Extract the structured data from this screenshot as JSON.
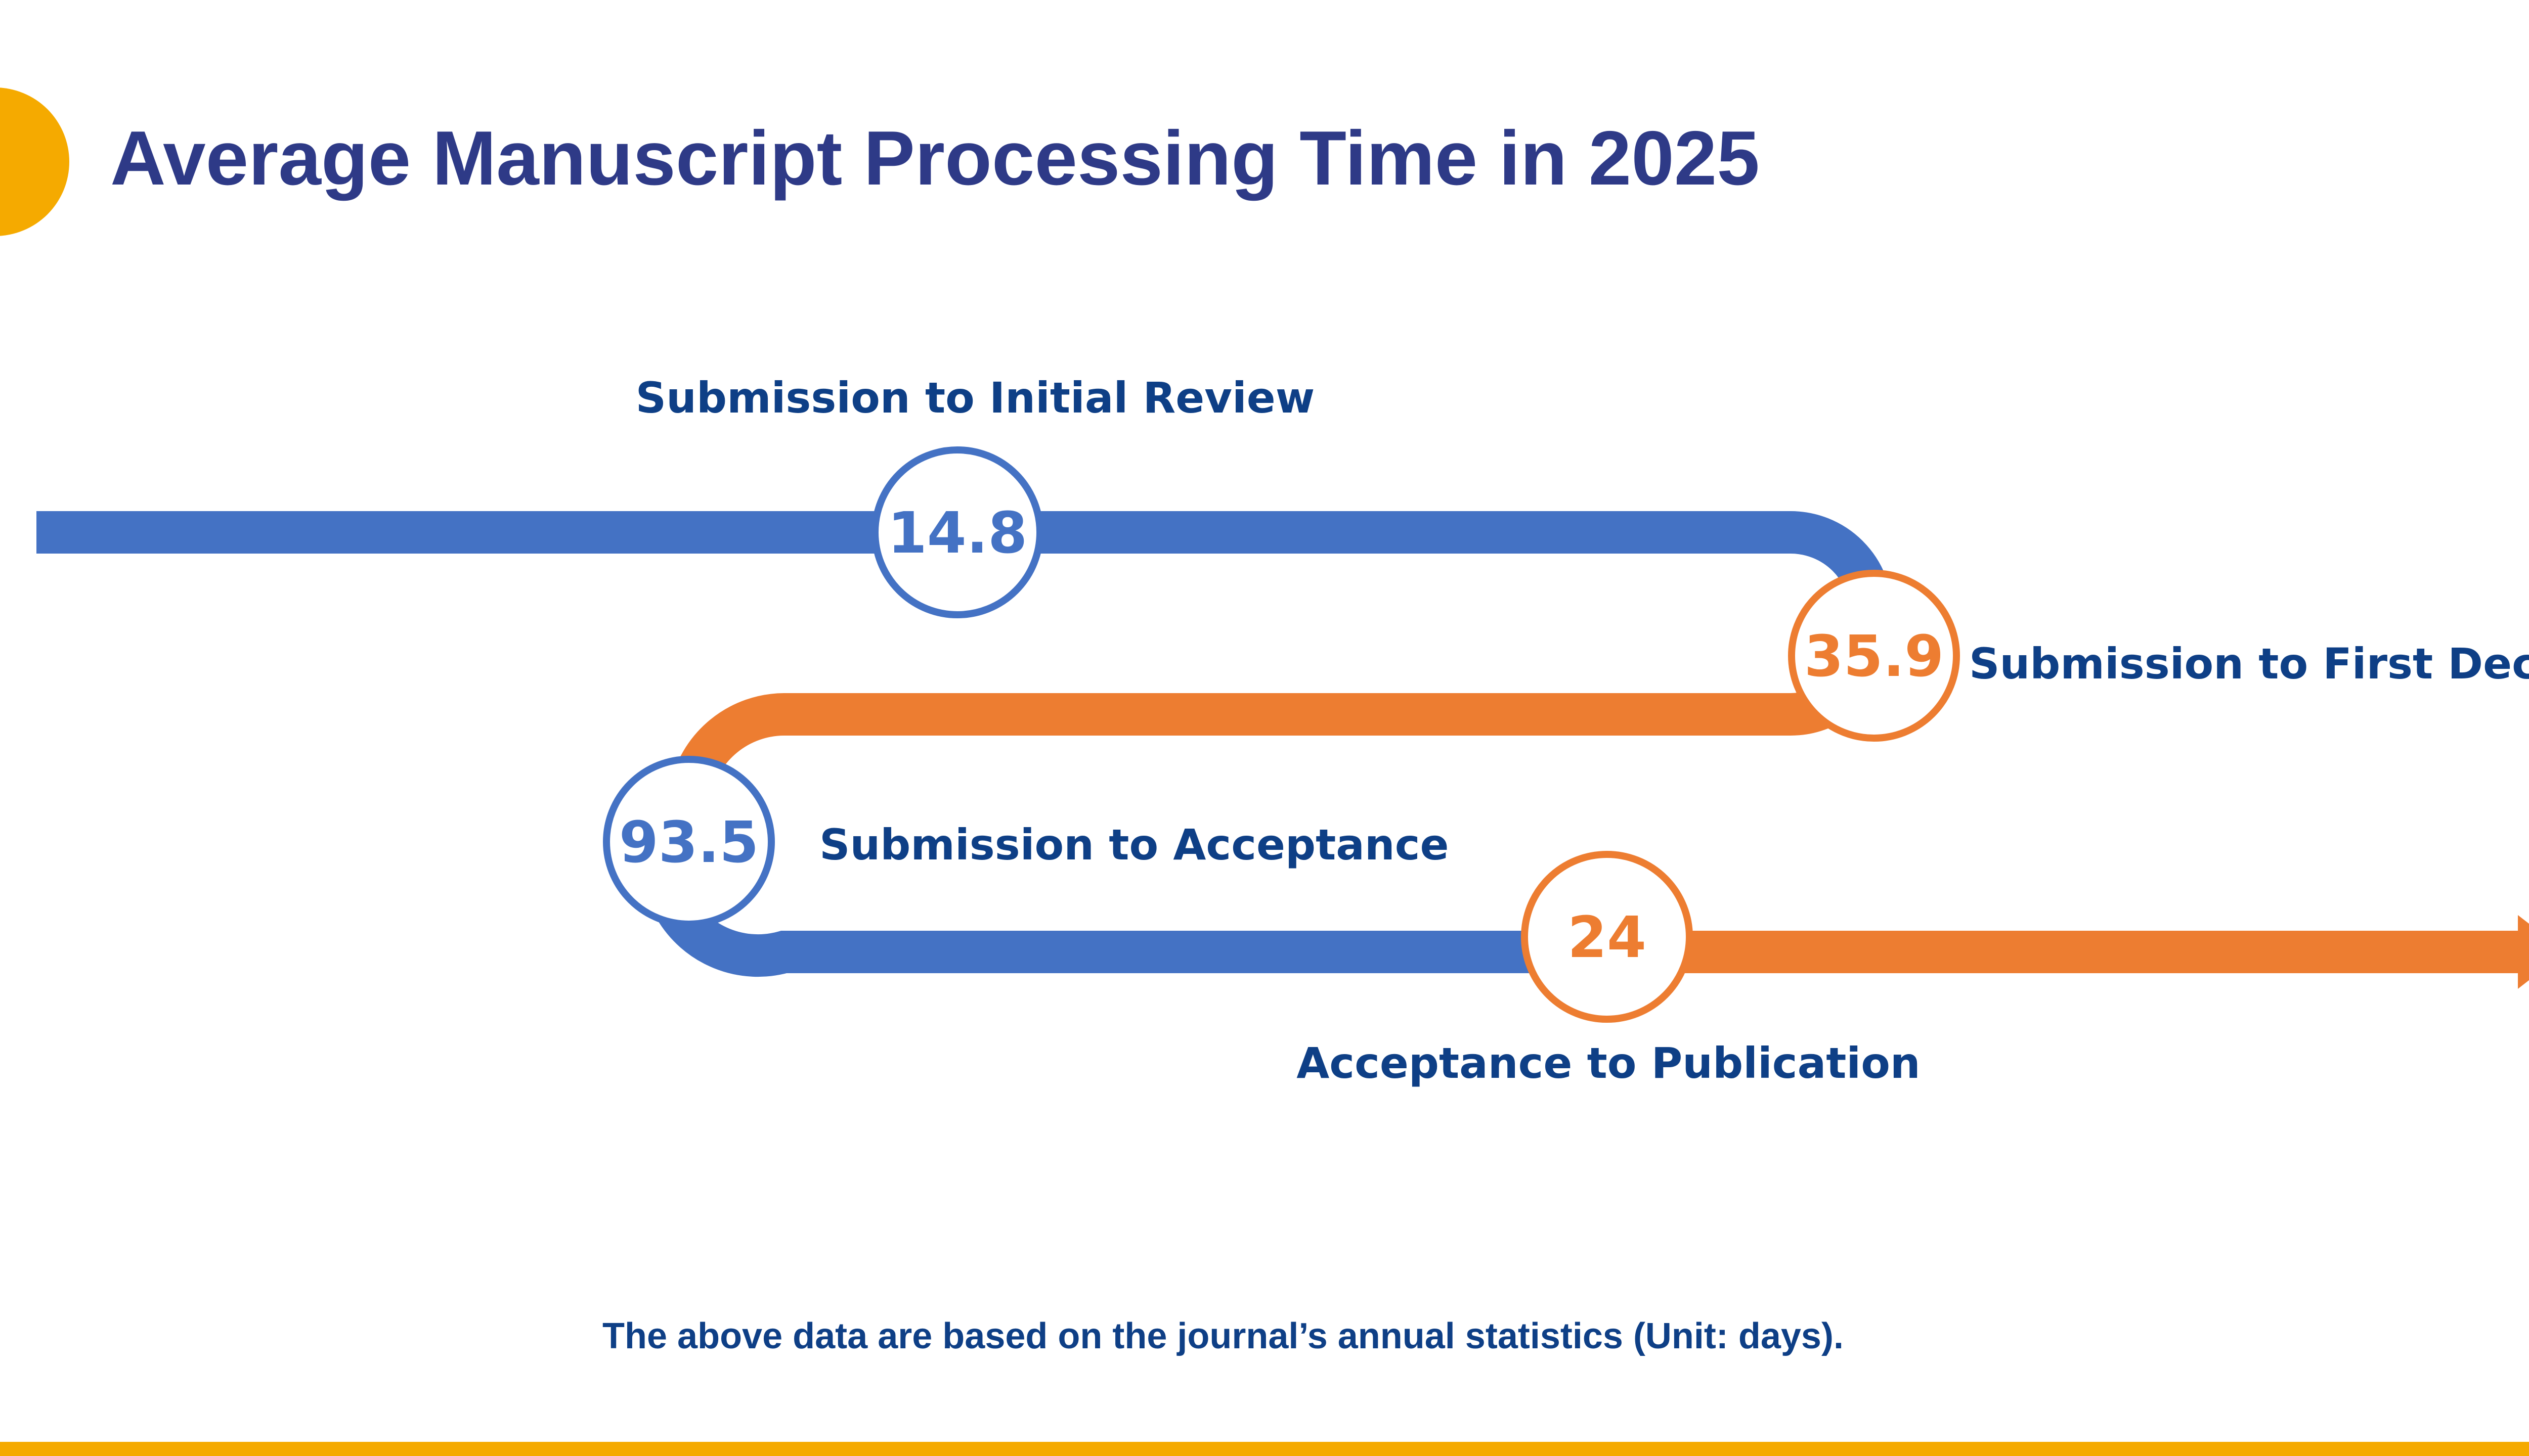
{
  "slide": {
    "title": "Average Manuscript Processing Time in 2025",
    "footnote": "The above data are based on the journal’s annual statistics (Unit: days)."
  },
  "colors": {
    "title": "#2E3A87",
    "label": "#0E3F86",
    "blue_track": "#4472C4",
    "orange_track": "#ED7D31",
    "accent_gold": "#F5AA00",
    "node_fill": "#ffffff"
  },
  "stages": [
    {
      "label": "Submission to Initial Review",
      "value": "14.8",
      "color": "blue"
    },
    {
      "label": "Submission to First Decision",
      "value": "35.9",
      "color": "orange"
    },
    {
      "label": "Submission to Acceptance",
      "value": "93.5",
      "color": "blue"
    },
    {
      "label": "Acceptance to Publication",
      "value": "24",
      "color": "orange"
    }
  ]
}
